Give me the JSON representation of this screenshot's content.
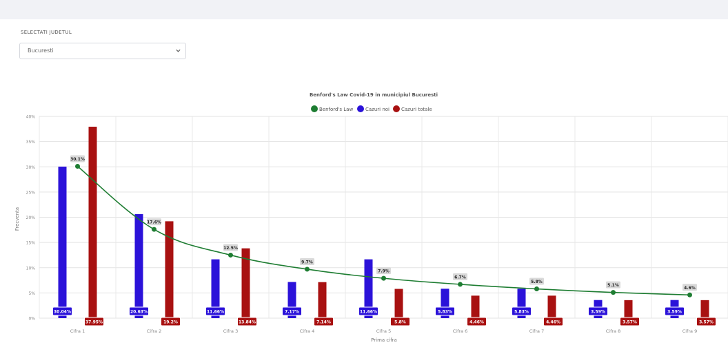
{
  "filter": {
    "label": "SELECTATI JUDETUL",
    "selected": "Bucuresti"
  },
  "chart_data": {
    "type": "bar",
    "title": "Benford's Law Covid-19 in municipiul Bucuresti",
    "xlabel": "Prima cifra",
    "ylabel": "Frecventa",
    "ylim": [
      0,
      40
    ],
    "yticks": [
      "0%",
      "5%",
      "10%",
      "15%",
      "20%",
      "25%",
      "30%",
      "35%",
      "40%"
    ],
    "categories": [
      "Cifra 1",
      "Cifra 2",
      "Cifra 3",
      "Cifra 4",
      "Cifra 5",
      "Cifra 6",
      "Cifra 7",
      "Cifra 8",
      "Cifra 9"
    ],
    "grid": true,
    "legend_position": "top-center",
    "series": [
      {
        "name": "Benford's Law",
        "type": "line",
        "color": "#1e7d32",
        "values": [
          30.1,
          17.6,
          12.5,
          9.7,
          7.9,
          6.7,
          5.8,
          5.1,
          4.6
        ],
        "labels": [
          "30.1%",
          "17.6%",
          "12.5%",
          "9.7%",
          "7.9%",
          "6.7%",
          "5.8%",
          "5.1%",
          "4.6%"
        ]
      },
      {
        "name": "Cazuri noi",
        "type": "bar",
        "color": "#2b12d9",
        "values": [
          30.04,
          20.63,
          11.66,
          7.17,
          11.66,
          5.83,
          5.83,
          3.59,
          3.59
        ],
        "labels": [
          "30.04%",
          "20.63%",
          "11.66%",
          "7.17%",
          "11.66%",
          "5.83%",
          "5.83%",
          "3.59%",
          "3.59%"
        ]
      },
      {
        "name": "Cazuri totale",
        "type": "bar",
        "color": "#a81111",
        "values": [
          37.95,
          19.2,
          13.84,
          7.14,
          5.8,
          4.46,
          4.46,
          3.57,
          3.57
        ],
        "labels": [
          "37.95%",
          "19.2%",
          "13.84%",
          "7.14%",
          "5.8%",
          "4.46%",
          "4.46%",
          "3.57%",
          "3.57%"
        ]
      }
    ]
  }
}
